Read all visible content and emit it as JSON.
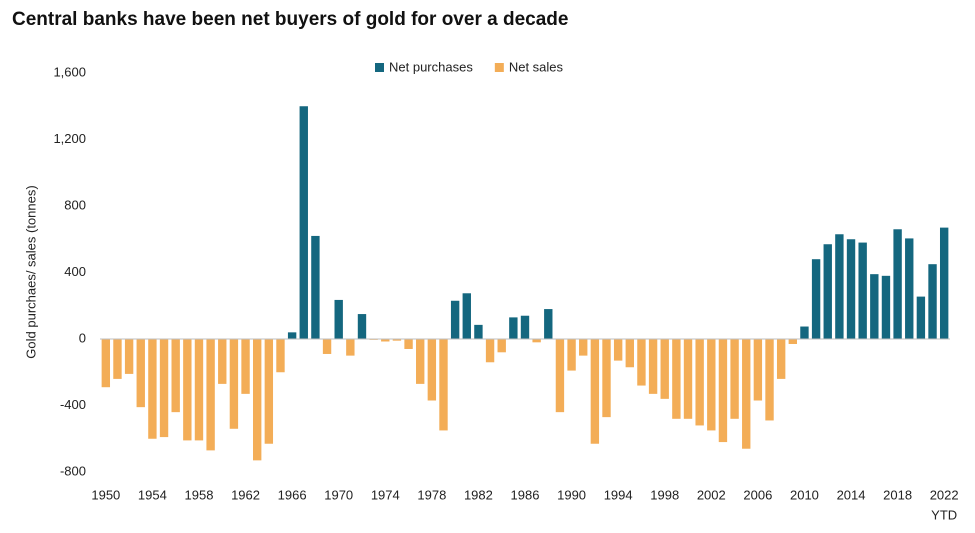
{
  "chart_data": {
    "type": "bar",
    "title": "Central banks have been net buyers of gold for over a decade",
    "y_label": "Gold purchaes/ sales (tonnes)",
    "categories": [
      "1950",
      null,
      null,
      null,
      "1954",
      null,
      null,
      null,
      "1958",
      null,
      null,
      null,
      "1962",
      null,
      null,
      null,
      "1966",
      null,
      null,
      null,
      "1970",
      null,
      null,
      null,
      "1974",
      null,
      null,
      null,
      "1978",
      null,
      null,
      null,
      "1982",
      null,
      null,
      null,
      "1986",
      null,
      null,
      null,
      "1990",
      null,
      null,
      null,
      "1994",
      null,
      null,
      null,
      "1998",
      null,
      null,
      null,
      "2002",
      null,
      null,
      null,
      "2006",
      null,
      null,
      null,
      "2010",
      null,
      null,
      null,
      "2014",
      null,
      null,
      null,
      "2018",
      null,
      null,
      null,
      "2022"
    ],
    "last_category_note": "YTD",
    "series": [
      {
        "name": "Net purchases",
        "color": "#14677f",
        "values": [
          null,
          null,
          null,
          null,
          null,
          null,
          null,
          null,
          null,
          null,
          null,
          null,
          null,
          null,
          null,
          null,
          40,
          1400,
          620,
          null,
          235,
          null,
          150,
          null,
          null,
          null,
          null,
          null,
          null,
          null,
          230,
          275,
          85,
          null,
          null,
          130,
          140,
          null,
          180,
          null,
          null,
          null,
          null,
          null,
          null,
          null,
          null,
          null,
          null,
          null,
          null,
          null,
          null,
          null,
          null,
          null,
          null,
          null,
          null,
          null,
          75,
          480,
          570,
          630,
          600,
          580,
          390,
          380,
          660,
          605,
          255,
          450,
          670
        ]
      },
      {
        "name": "Net sales",
        "color": "#f3ad57",
        "values": [
          -290,
          -240,
          -210,
          -410,
          -600,
          -590,
          -440,
          -610,
          -610,
          -670,
          -270,
          -540,
          -330,
          -730,
          -630,
          -200,
          null,
          null,
          null,
          -90,
          null,
          -100,
          null,
          -5,
          -15,
          -10,
          -60,
          -270,
          -370,
          -550,
          null,
          null,
          null,
          -140,
          -80,
          null,
          null,
          -20,
          null,
          -440,
          -190,
          -100,
          -630,
          -470,
          -130,
          -170,
          -280,
          -330,
          -360,
          -480,
          -480,
          -520,
          -550,
          -620,
          -480,
          -660,
          -370,
          -490,
          -240,
          -30,
          null,
          null,
          null,
          null,
          null,
          null,
          null,
          null,
          null,
          null,
          null,
          null,
          null
        ]
      }
    ],
    "ylim": [
      -800,
      1600
    ],
    "yticks": [
      {
        "value": 1600,
        "label": "1,600"
      },
      {
        "value": 1200,
        "label": "1,200"
      },
      800,
      400,
      0,
      -400,
      -800
    ],
    "grid": false,
    "legend": "top"
  }
}
